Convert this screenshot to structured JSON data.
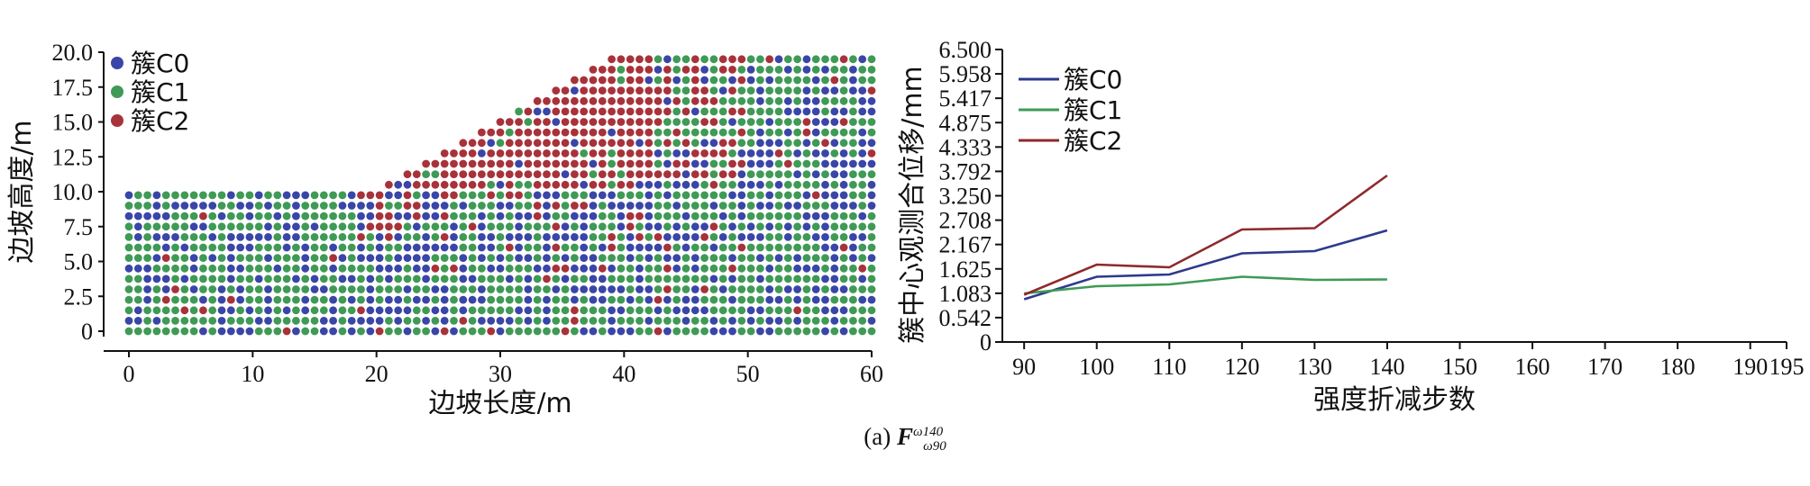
{
  "chart_data": [
    {
      "type": "scatter",
      "xlabel": "边坡长度/m",
      "ylabel": "边坡高度/m",
      "xlim": [
        0,
        60
      ],
      "ylim": [
        0,
        20
      ],
      "x_ticks": [
        "0",
        "10",
        "20",
        "30",
        "40",
        "50",
        "60"
      ],
      "y_ticks": [
        "0",
        "2.5",
        "5.0",
        "7.5",
        "10.0",
        "12.5",
        "15.0",
        "17.5",
        "20.0"
      ],
      "legend_position": "top-left",
      "series": [
        {
          "name": "簇C0",
          "color": "#3a45a8"
        },
        {
          "name": "簇C1",
          "color": "#3f9a55"
        },
        {
          "name": "簇C2",
          "color": "#a8323a"
        }
      ],
      "slope_profile": [
        [
          0,
          0
        ],
        [
          60,
          0
        ],
        [
          60,
          20
        ],
        [
          40,
          20
        ],
        [
          20,
          10
        ],
        [
          0,
          10
        ]
      ]
    },
    {
      "type": "line",
      "xlabel": "强度折减步数",
      "ylabel": "簇中心观测合位移/mm",
      "x_ticks": [
        "90",
        "100",
        "110",
        "120",
        "130",
        "140",
        "150",
        "160",
        "170",
        "180",
        "190",
        "195"
      ],
      "y_ticks": [
        "0",
        "0.542",
        "1.083",
        "1.625",
        "2.167",
        "2.708",
        "3.250",
        "3.792",
        "4.333",
        "4.875",
        "5.417",
        "5.958",
        "6.500"
      ],
      "xlim": [
        87,
        195
      ],
      "ylim": [
        0,
        6.5
      ],
      "legend_position": "top-left",
      "x": [
        90,
        100,
        110,
        120,
        130,
        140
      ],
      "series": [
        {
          "name": "簇C0",
          "color": "#2e3a8c",
          "values": [
            0.95,
            1.45,
            1.5,
            1.97,
            2.02,
            2.48
          ]
        },
        {
          "name": "簇C1",
          "color": "#3f9a55",
          "values": [
            1.08,
            1.24,
            1.28,
            1.45,
            1.38,
            1.39
          ]
        },
        {
          "name": "簇C2",
          "color": "#8e2a2e",
          "values": [
            1.05,
            1.72,
            1.66,
            2.5,
            2.53,
            3.7
          ]
        }
      ]
    }
  ],
  "caption": {
    "prefix": "(a) ",
    "main": "F",
    "sup": "ω",
    "sub": "ω",
    "sup_num": "140",
    "sub_num": "90"
  }
}
